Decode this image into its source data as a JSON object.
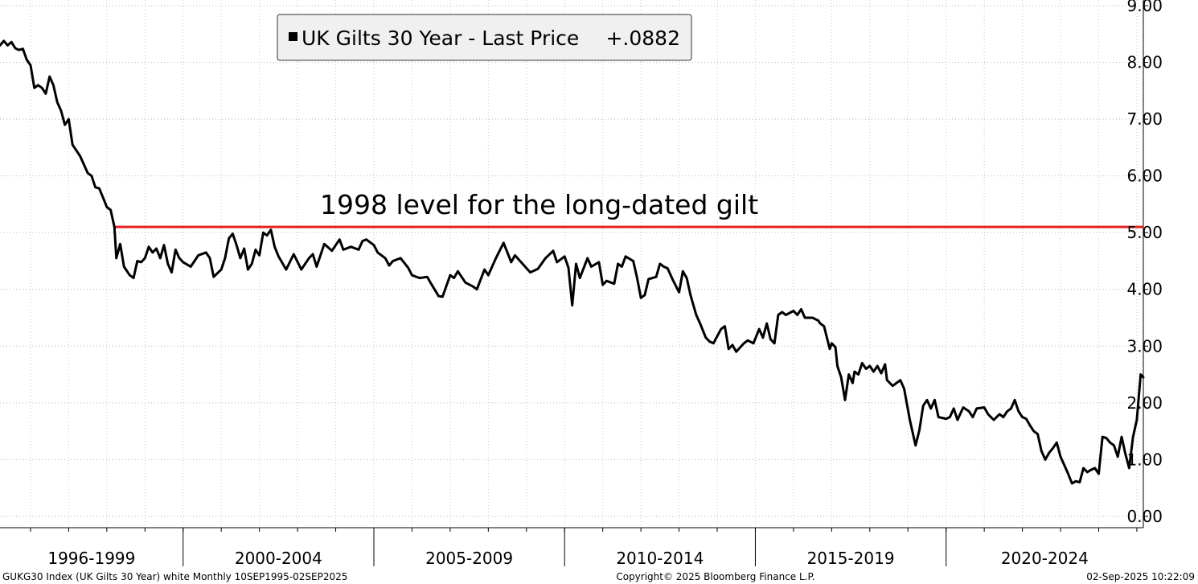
{
  "chart_data": {
    "type": "line",
    "legend": {
      "label": "UK Gilts 30 Year - Last Price",
      "value": "+.0882",
      "position": "top-left"
    },
    "annotation": {
      "text": "1998 level for the long-dated gilt",
      "level": 5.1,
      "color": "#e8211d"
    },
    "y_axis": {
      "ticks": [
        "0.00",
        "1.00",
        "2.00",
        "3.00",
        "4.00",
        "5.00",
        "6.00",
        "7.00",
        "8.00",
        "9.00"
      ],
      "range": [
        -0.2,
        9.1
      ],
      "position": "right"
    },
    "x_axis": {
      "range": [
        1995.7,
        2025.67
      ],
      "periods": [
        "1996-1999",
        "2000-2004",
        "2005-2009",
        "2010-2014",
        "2015-2019",
        "2020-2024"
      ],
      "period_boundaries": [
        1995.7,
        2000.5,
        2005.5,
        2010.5,
        2015.5,
        2020.5,
        2025.67
      ]
    },
    "grid": true,
    "series": [
      {
        "line_color": "#000000",
        "points": [
          [
            1995.7,
            8.3
          ],
          [
            1995.8,
            8.38
          ],
          [
            1995.9,
            8.3
          ],
          [
            1996.0,
            8.36
          ],
          [
            1996.1,
            8.25
          ],
          [
            1996.2,
            8.22
          ],
          [
            1996.3,
            8.24
          ],
          [
            1996.4,
            8.05
          ],
          [
            1996.5,
            7.95
          ],
          [
            1996.6,
            7.55
          ],
          [
            1996.7,
            7.6
          ],
          [
            1996.8,
            7.55
          ],
          [
            1996.9,
            7.45
          ],
          [
            1997.0,
            7.75
          ],
          [
            1997.1,
            7.6
          ],
          [
            1997.2,
            7.3
          ],
          [
            1997.3,
            7.15
          ],
          [
            1997.4,
            6.9
          ],
          [
            1997.5,
            7.0
          ],
          [
            1997.6,
            6.55
          ],
          [
            1997.7,
            6.45
          ],
          [
            1997.8,
            6.35
          ],
          [
            1997.9,
            6.2
          ],
          [
            1998.0,
            6.05
          ],
          [
            1998.1,
            6.0
          ],
          [
            1998.2,
            5.8
          ],
          [
            1998.3,
            5.78
          ],
          [
            1998.4,
            5.62
          ],
          [
            1998.5,
            5.45
          ],
          [
            1998.6,
            5.4
          ],
          [
            1998.7,
            5.1
          ],
          [
            1998.75,
            4.55
          ],
          [
            1998.85,
            4.8
          ],
          [
            1998.95,
            4.4
          ],
          [
            1999.1,
            4.25
          ],
          [
            1999.2,
            4.2
          ],
          [
            1999.3,
            4.5
          ],
          [
            1999.4,
            4.48
          ],
          [
            1999.5,
            4.55
          ],
          [
            1999.6,
            4.75
          ],
          [
            1999.7,
            4.65
          ],
          [
            1999.8,
            4.72
          ],
          [
            1999.9,
            4.55
          ],
          [
            2000.0,
            4.78
          ],
          [
            2000.1,
            4.45
          ],
          [
            2000.2,
            4.3
          ],
          [
            2000.3,
            4.7
          ],
          [
            2000.4,
            4.55
          ],
          [
            2000.5,
            4.48
          ],
          [
            2000.7,
            4.4
          ],
          [
            2000.9,
            4.6
          ],
          [
            2001.1,
            4.65
          ],
          [
            2001.2,
            4.55
          ],
          [
            2001.3,
            4.22
          ],
          [
            2001.5,
            4.35
          ],
          [
            2001.6,
            4.55
          ],
          [
            2001.7,
            4.9
          ],
          [
            2001.8,
            4.98
          ],
          [
            2001.9,
            4.78
          ],
          [
            2002.0,
            4.55
          ],
          [
            2002.1,
            4.72
          ],
          [
            2002.2,
            4.35
          ],
          [
            2002.3,
            4.45
          ],
          [
            2002.4,
            4.7
          ],
          [
            2002.5,
            4.6
          ],
          [
            2002.6,
            5.0
          ],
          [
            2002.7,
            4.95
          ],
          [
            2002.8,
            5.05
          ],
          [
            2002.9,
            4.75
          ],
          [
            2003.0,
            4.58
          ],
          [
            2003.2,
            4.35
          ],
          [
            2003.4,
            4.62
          ],
          [
            2003.6,
            4.35
          ],
          [
            2003.8,
            4.55
          ],
          [
            2003.9,
            4.62
          ],
          [
            2004.0,
            4.4
          ],
          [
            2004.2,
            4.8
          ],
          [
            2004.4,
            4.68
          ],
          [
            2004.6,
            4.88
          ],
          [
            2004.7,
            4.7
          ],
          [
            2004.9,
            4.75
          ],
          [
            2005.1,
            4.7
          ],
          [
            2005.2,
            4.85
          ],
          [
            2005.3,
            4.88
          ],
          [
            2005.5,
            4.78
          ],
          [
            2005.6,
            4.65
          ],
          [
            2005.8,
            4.55
          ],
          [
            2005.9,
            4.42
          ],
          [
            2006.0,
            4.5
          ],
          [
            2006.2,
            4.55
          ],
          [
            2006.4,
            4.38
          ],
          [
            2006.5,
            4.25
          ],
          [
            2006.7,
            4.2
          ],
          [
            2006.9,
            4.22
          ],
          [
            2007.0,
            4.1
          ],
          [
            2007.2,
            3.88
          ],
          [
            2007.3,
            3.87
          ],
          [
            2007.5,
            4.25
          ],
          [
            2007.6,
            4.2
          ],
          [
            2007.7,
            4.32
          ],
          [
            2007.9,
            4.12
          ],
          [
            2008.1,
            4.05
          ],
          [
            2008.2,
            4.0
          ],
          [
            2008.4,
            4.35
          ],
          [
            2008.5,
            4.25
          ],
          [
            2008.7,
            4.55
          ],
          [
            2008.9,
            4.82
          ],
          [
            2009.0,
            4.65
          ],
          [
            2009.1,
            4.48
          ],
          [
            2009.2,
            4.6
          ],
          [
            2009.4,
            4.45
          ],
          [
            2009.6,
            4.3
          ],
          [
            2009.8,
            4.36
          ],
          [
            2010.0,
            4.55
          ],
          [
            2010.2,
            4.68
          ],
          [
            2010.3,
            4.48
          ],
          [
            2010.5,
            4.58
          ],
          [
            2010.6,
            4.38
          ],
          [
            2010.7,
            3.72
          ],
          [
            2010.8,
            4.45
          ],
          [
            2010.9,
            4.2
          ],
          [
            2011.1,
            4.55
          ],
          [
            2011.2,
            4.4
          ],
          [
            2011.4,
            4.48
          ],
          [
            2011.5,
            4.08
          ],
          [
            2011.6,
            4.15
          ],
          [
            2011.8,
            4.1
          ],
          [
            2011.9,
            4.45
          ],
          [
            2012.0,
            4.4
          ],
          [
            2012.1,
            4.58
          ],
          [
            2012.3,
            4.5
          ],
          [
            2012.4,
            4.2
          ],
          [
            2012.5,
            3.85
          ],
          [
            2012.6,
            3.9
          ],
          [
            2012.7,
            4.18
          ],
          [
            2012.9,
            4.22
          ],
          [
            2013.0,
            4.45
          ],
          [
            2013.1,
            4.4
          ],
          [
            2013.2,
            4.37
          ],
          [
            2013.35,
            4.15
          ],
          [
            2013.5,
            3.95
          ],
          [
            2013.6,
            4.32
          ],
          [
            2013.7,
            4.2
          ],
          [
            2013.8,
            3.9
          ],
          [
            2013.95,
            3.55
          ],
          [
            2014.05,
            3.4
          ],
          [
            2014.2,
            3.15
          ],
          [
            2014.3,
            3.08
          ],
          [
            2014.4,
            3.05
          ],
          [
            2014.6,
            3.3
          ],
          [
            2014.7,
            3.35
          ],
          [
            2014.8,
            2.95
          ],
          [
            2014.9,
            3.02
          ],
          [
            2015.0,
            2.9
          ],
          [
            2015.2,
            3.05
          ],
          [
            2015.3,
            3.1
          ],
          [
            2015.45,
            3.05
          ],
          [
            2015.6,
            3.3
          ],
          [
            2015.7,
            3.15
          ],
          [
            2015.8,
            3.4
          ],
          [
            2015.9,
            3.12
          ],
          [
            2016.0,
            3.05
          ],
          [
            2016.1,
            3.55
          ],
          [
            2016.2,
            3.6
          ],
          [
            2016.3,
            3.55
          ],
          [
            2016.5,
            3.62
          ],
          [
            2016.6,
            3.55
          ],
          [
            2016.7,
            3.65
          ],
          [
            2016.8,
            3.5
          ],
          [
            2017.0,
            3.5
          ],
          [
            2017.15,
            3.45
          ],
          [
            2017.2,
            3.4
          ],
          [
            2017.3,
            3.35
          ],
          [
            2017.45,
            2.95
          ],
          [
            2017.5,
            3.05
          ],
          [
            2017.6,
            2.98
          ],
          [
            2017.65,
            2.65
          ],
          [
            2017.75,
            2.45
          ],
          [
            2017.85,
            2.05
          ],
          [
            2017.95,
            2.5
          ],
          [
            2018.05,
            2.35
          ],
          [
            2018.1,
            2.55
          ],
          [
            2018.2,
            2.5
          ],
          [
            2018.3,
            2.7
          ],
          [
            2018.4,
            2.6
          ],
          [
            2018.5,
            2.65
          ],
          [
            2018.6,
            2.55
          ],
          [
            2018.7,
            2.65
          ],
          [
            2018.8,
            2.52
          ],
          [
            2018.9,
            2.68
          ],
          [
            2018.95,
            2.4
          ],
          [
            2019.1,
            2.3
          ],
          [
            2019.3,
            2.4
          ],
          [
            2019.4,
            2.25
          ],
          [
            2019.55,
            1.7
          ],
          [
            2019.7,
            1.25
          ],
          [
            2019.8,
            1.52
          ],
          [
            2019.9,
            1.95
          ],
          [
            2020.0,
            2.05
          ],
          [
            2020.1,
            1.9
          ],
          [
            2020.2,
            2.05
          ],
          [
            2020.3,
            1.75
          ],
          [
            2020.5,
            1.72
          ],
          [
            2020.6,
            1.75
          ],
          [
            2020.7,
            1.9
          ],
          [
            2020.8,
            1.7
          ],
          [
            2020.95,
            1.92
          ],
          [
            2021.1,
            1.85
          ],
          [
            2021.2,
            1.75
          ],
          [
            2021.3,
            1.9
          ],
          [
            2021.5,
            1.92
          ],
          [
            2021.6,
            1.8
          ],
          [
            2021.75,
            1.7
          ],
          [
            2021.9,
            1.8
          ],
          [
            2022.0,
            1.75
          ],
          [
            2022.1,
            1.85
          ],
          [
            2022.2,
            1.9
          ],
          [
            2022.3,
            2.05
          ],
          [
            2022.4,
            1.85
          ],
          [
            2022.5,
            1.75
          ],
          [
            2022.6,
            1.72
          ],
          [
            2022.7,
            1.6
          ],
          [
            2022.8,
            1.5
          ],
          [
            2022.9,
            1.45
          ],
          [
            2023.0,
            1.15
          ],
          [
            2023.1,
            1.0
          ],
          [
            2023.2,
            1.12
          ],
          [
            2023.3,
            1.2
          ],
          [
            2023.4,
            1.3
          ],
          [
            2023.5,
            1.05
          ],
          [
            2023.6,
            0.9
          ],
          [
            2023.7,
            0.75
          ],
          [
            2023.8,
            0.58
          ],
          [
            2023.9,
            0.62
          ],
          [
            2024.0,
            0.6
          ],
          [
            2024.1,
            0.85
          ],
          [
            2024.2,
            0.78
          ],
          [
            2024.3,
            0.82
          ],
          [
            2024.4,
            0.85
          ],
          [
            2024.5,
            0.75
          ],
          [
            2024.6,
            1.4
          ],
          [
            2024.7,
            1.38
          ],
          [
            2024.8,
            1.3
          ],
          [
            2024.9,
            1.25
          ],
          [
            2025.0,
            1.05
          ],
          [
            2025.1,
            1.4
          ],
          [
            2025.2,
            1.1
          ],
          [
            2025.3,
            0.85
          ],
          [
            2025.4,
            1.4
          ],
          [
            2025.5,
            1.7
          ],
          [
            2025.6,
            2.5
          ],
          [
            2025.67,
            2.45
          ]
        ]
      }
    ]
  }
}
